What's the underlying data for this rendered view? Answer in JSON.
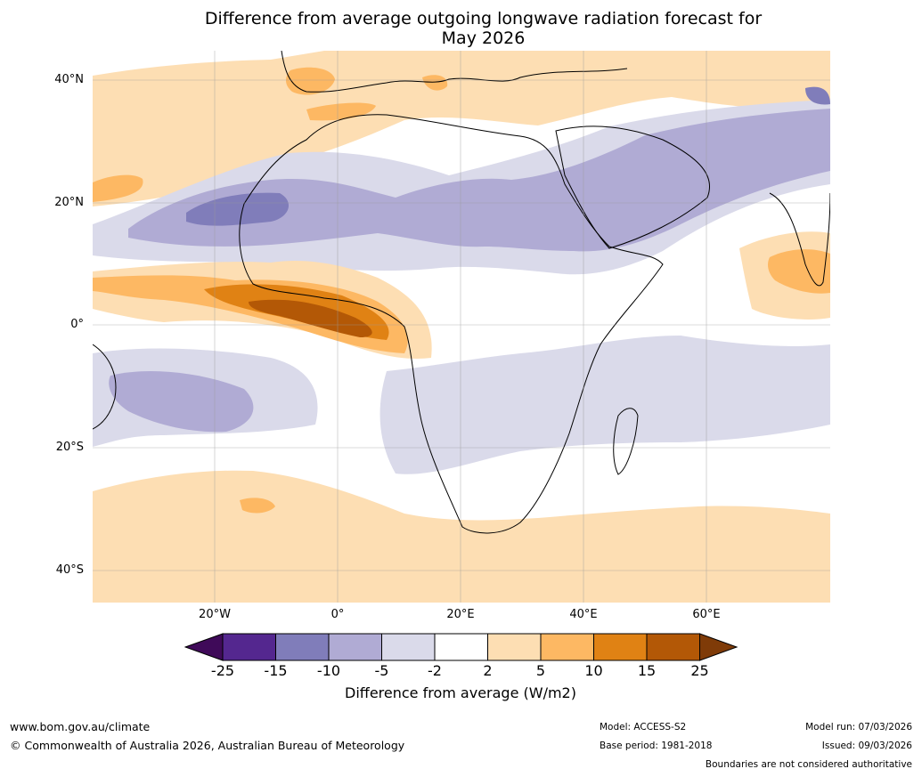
{
  "title_line1": "Difference from average outgoing longwave radiation forecast for",
  "title_line2": "May 2026",
  "lat_labels": [
    "40°N",
    "20°N",
    "0°",
    "20°S",
    "40°S"
  ],
  "lon_labels": [
    "20°W",
    "0°",
    "20°E",
    "40°E",
    "60°E"
  ],
  "legend": {
    "title": "Difference from average (W/m2)",
    "ticks": [
      "-25",
      "-15",
      "-10",
      "-5",
      "-2",
      "2",
      "5",
      "10",
      "15",
      "25"
    ],
    "bins": [
      {
        "label": "< -25",
        "color": "#3f0a59"
      },
      {
        "label": "-25 to -15",
        "color": "#54278f"
      },
      {
        "label": "-15 to -10",
        "color": "#807dba"
      },
      {
        "label": "-10 to -5",
        "color": "#b0abd4"
      },
      {
        "label": "-5 to -2",
        "color": "#dadaea"
      },
      {
        "label": "-2 to 2",
        "color": "#ffffff"
      },
      {
        "label": "2 to 5",
        "color": "#fddeb3"
      },
      {
        "label": "5 to 10",
        "color": "#fdb863"
      },
      {
        "label": "10 to 15",
        "color": "#e08214"
      },
      {
        "label": "15 to 25",
        "color": "#b35806"
      },
      {
        "label": "> 25",
        "color": "#7f3b08"
      }
    ]
  },
  "footer": {
    "url": "www.bom.gov.au/climate",
    "copyright": "© Commonwealth of Australia 2026, Australian Bureau of Meteorology",
    "model": "Model: ACCESS-S2",
    "base_period": "Base period: 1981-2018",
    "model_run": "Model run: 07/03/2026",
    "issued": "Issued: 09/03/2026",
    "disclaimer": "Boundaries are not considered authoritative"
  }
}
